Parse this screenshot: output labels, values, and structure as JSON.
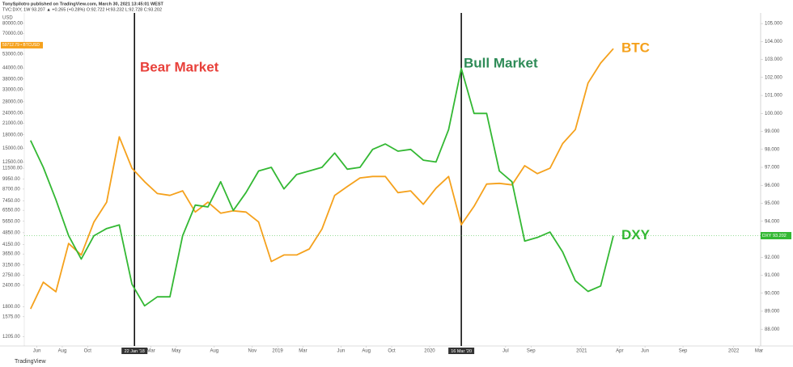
{
  "header": {
    "author_line": "TonySpilotro published on TradingView.com, March 30, 2021 13:45:01 WEST",
    "symbol_line": "TVC:DXY, 1W 93.207 ▲ +0.265 (+0.28%) O:92.722 H:93.232 L:92.728 C:93.202"
  },
  "footer": "TradingView",
  "chart_data": {
    "type": "line",
    "y_unit": "USD",
    "x": [
      "2017-05",
      "2017-06",
      "2017-07",
      "2017-08",
      "2017-09",
      "2017-10",
      "2017-11",
      "2017-12",
      "2018-01",
      "2018-02",
      "2018-03",
      "2018-04",
      "2018-05",
      "2018-06",
      "2018-07",
      "2018-08",
      "2018-09",
      "2018-10",
      "2018-11",
      "2018-12",
      "2019-01",
      "2019-02",
      "2019-03",
      "2019-04",
      "2019-05",
      "2019-06",
      "2019-07",
      "2019-08",
      "2019-09",
      "2019-10",
      "2019-11",
      "2019-12",
      "2020-01",
      "2020-02",
      "2020-03",
      "2020-04",
      "2020-05",
      "2020-06",
      "2020-07",
      "2020-08",
      "2020-09",
      "2020-10",
      "2020-11",
      "2020-12",
      "2021-01",
      "2021-02",
      "2021-03"
    ],
    "series": [
      {
        "name": "BTC",
        "color": "#f5a11c",
        "axis": "y",
        "values": [
          1750,
          2500,
          2200,
          4200,
          3600,
          5600,
          7300,
          17500,
          11500,
          9600,
          8200,
          8000,
          8500,
          6400,
          7300,
          6300,
          6500,
          6400,
          5600,
          3300,
          3600,
          3600,
          3900,
          5100,
          8000,
          9000,
          10100,
          10300,
          10300,
          8300,
          8500,
          7100,
          8800,
          10300,
          5400,
          6900,
          9300,
          9400,
          9200,
          11900,
          10700,
          11500,
          16000,
          19300,
          36000,
          47000,
          57000
        ],
        "last": {
          "value": 59712.79,
          "label": "59712.79 • BTCUSD"
        }
      },
      {
        "name": "DXY",
        "color": "#33b833",
        "axis": "y2",
        "values": [
          98.5,
          97.0,
          95.2,
          93.2,
          91.9,
          93.2,
          93.6,
          93.8,
          90.5,
          89.3,
          89.8,
          89.8,
          93.2,
          94.9,
          94.8,
          96.2,
          94.6,
          95.6,
          96.8,
          97.0,
          95.8,
          96.6,
          96.8,
          97.0,
          97.8,
          96.9,
          97.0,
          98.0,
          98.3,
          97.9,
          98.0,
          97.4,
          97.3,
          99.1,
          102.5,
          100.0,
          100.0,
          96.8,
          96.2,
          92.9,
          93.1,
          93.4,
          92.3,
          90.7,
          90.1,
          90.4,
          93.2
        ],
        "last": {
          "value": 93.202,
          "label": "93.202"
        }
      }
    ],
    "xlim": [
      "2017-05",
      "2022-03"
    ],
    "xticks": [
      {
        "value": "2017-06",
        "label": "Jun"
      },
      {
        "value": "2017-08",
        "label": "Aug"
      },
      {
        "value": "2017-10",
        "label": "Oct"
      },
      {
        "value": "2018-03",
        "label": "Mar"
      },
      {
        "value": "2018-05",
        "label": "May"
      },
      {
        "value": "2018-08",
        "label": "Aug"
      },
      {
        "value": "2018-11",
        "label": "Nov"
      },
      {
        "value": "2019-01",
        "label": "2019"
      },
      {
        "value": "2019-03",
        "label": "Mar"
      },
      {
        "value": "2019-06",
        "label": "Jun"
      },
      {
        "value": "2019-08",
        "label": "Aug"
      },
      {
        "value": "2019-10",
        "label": "Oct"
      },
      {
        "value": "2020-01",
        "label": "2020"
      },
      {
        "value": "2020-07",
        "label": "Jul"
      },
      {
        "value": "2020-09",
        "label": "Sep"
      },
      {
        "value": "2021-01",
        "label": "2021"
      },
      {
        "value": "2021-04",
        "label": "Apr"
      },
      {
        "value": "2021-06",
        "label": "Jun"
      },
      {
        "value": "2021-09",
        "label": "Sep"
      },
      {
        "value": "2022-01",
        "label": "2022"
      },
      {
        "value": "2022-03",
        "label": "Mar"
      }
    ],
    "y_scale": "log",
    "ylim": [
      1100,
      90000
    ],
    "yticks": [
      {
        "value": 80000,
        "label": "80000.00"
      },
      {
        "value": 70000,
        "label": "70000.00"
      },
      {
        "value": 53000,
        "label": "53000.00"
      },
      {
        "value": 44000,
        "label": "44000.00"
      },
      {
        "value": 38000,
        "label": "38000.00"
      },
      {
        "value": 33000,
        "label": "33000.00"
      },
      {
        "value": 28000,
        "label": "28000.00"
      },
      {
        "value": 24000,
        "label": "24000.00"
      },
      {
        "value": 21000,
        "label": "21000.00"
      },
      {
        "value": 18000,
        "label": "18000.00"
      },
      {
        "value": 15000,
        "label": "15000.00"
      },
      {
        "value": 12500,
        "label": "12500.00"
      },
      {
        "value": 11500,
        "label": "11500.00"
      },
      {
        "value": 9950,
        "label": "9950.00"
      },
      {
        "value": 8700,
        "label": "8700.00"
      },
      {
        "value": 7450,
        "label": "7450.00"
      },
      {
        "value": 6550,
        "label": "6550.00"
      },
      {
        "value": 5650,
        "label": "5650.00"
      },
      {
        "value": 4850,
        "label": "4850.00"
      },
      {
        "value": 4150,
        "label": "4150.00"
      },
      {
        "value": 3650,
        "label": "3650.00"
      },
      {
        "value": 3150,
        "label": "3150.00"
      },
      {
        "value": 2750,
        "label": "2750.00"
      },
      {
        "value": 2400,
        "label": "2400.00"
      },
      {
        "value": 1800,
        "label": "1800.00"
      },
      {
        "value": 1575,
        "label": "1575.00"
      },
      {
        "value": 1205,
        "label": "1205.00"
      }
    ],
    "y2lim": [
      87.2,
      105.5
    ],
    "y2ticks": [
      {
        "value": 105,
        "label": "105.000"
      },
      {
        "value": 104,
        "label": "104.000"
      },
      {
        "value": 103,
        "label": "103.000"
      },
      {
        "value": 102,
        "label": "102.000"
      },
      {
        "value": 101,
        "label": "101.000"
      },
      {
        "value": 100,
        "label": "100.000"
      },
      {
        "value": 99,
        "label": "99.000"
      },
      {
        "value": 98,
        "label": "98.000"
      },
      {
        "value": 97,
        "label": "97.000"
      },
      {
        "value": 96,
        "label": "96.000"
      },
      {
        "value": 95,
        "label": "95.000"
      },
      {
        "value": 94,
        "label": "94.000"
      },
      {
        "value": 92,
        "label": "92.000"
      },
      {
        "value": 91,
        "label": "91.000"
      },
      {
        "value": 90,
        "label": "90.000"
      },
      {
        "value": 89,
        "label": "89.000"
      },
      {
        "value": 88,
        "label": "88.000"
      }
    ],
    "markers": [
      {
        "x": "2018-01-22",
        "label": "22 Jan '18"
      },
      {
        "x": "2020-03-16",
        "label": "16 Mar '20"
      }
    ],
    "annotations": [
      {
        "text": "Bear Market",
        "color": "#e8403a"
      },
      {
        "text": "Bull Market",
        "color": "#2e8b57"
      }
    ]
  }
}
